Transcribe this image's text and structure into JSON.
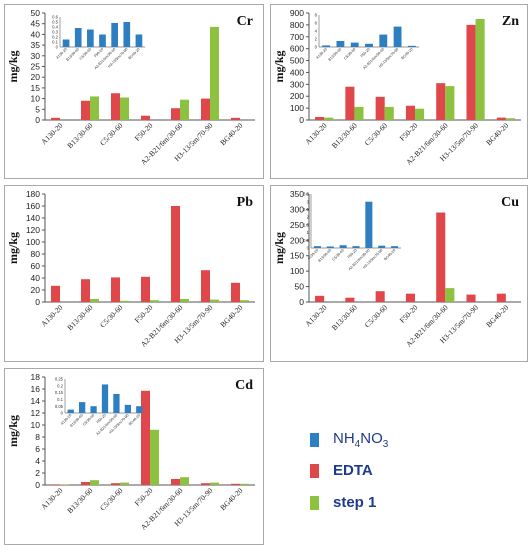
{
  "colors": {
    "NH4NO3": "#2e7fc2",
    "EDTA": "#e0474a",
    "step1": "#8cc23f"
  },
  "legend": {
    "items": [
      {
        "key": "NH4NO3",
        "prefix": "NH",
        "sub1": "4",
        "mid": "NO",
        "sub2": "3"
      },
      {
        "key": "EDTA",
        "label": "EDTA"
      },
      {
        "key": "step1",
        "label": "step 1"
      }
    ]
  },
  "chart_data": [
    {
      "type": "bar",
      "element": "Cr",
      "ylabel": "mg/kg",
      "ylim": [
        0,
        50
      ],
      "yticks": [
        0,
        5,
        10,
        15,
        20,
        25,
        30,
        35,
        40,
        45,
        50
      ],
      "categories": [
        "A130-20",
        "B13/30-60",
        "C5/30-60",
        "F50-20",
        "A2-B21/6m/30-60",
        "H3-13/5m/70-90",
        "BG40-20"
      ],
      "series": [
        {
          "key": "EDTA",
          "values": [
            1,
            9,
            12.5,
            2,
            5.5,
            10,
            1
          ]
        },
        {
          "key": "step1",
          "values": [
            0,
            11,
            10.5,
            0,
            9.5,
            43.5,
            0
          ]
        }
      ],
      "inset": {
        "ylim": [
          0,
          0.6
        ],
        "yticks": [
          0,
          0.1,
          0.2,
          0.3,
          0.4,
          0.5,
          0.6
        ],
        "labels": [
          "A130-20",
          "B13/30-60",
          "C5/30-60",
          "F50-20",
          "A2-B21/6m/30-60",
          "H3-13/5m/70-90",
          "BG40-20"
        ],
        "values": [
          0.15,
          0.38,
          0.35,
          0.25,
          0.48,
          0.5,
          0.25
        ]
      }
    },
    {
      "type": "bar",
      "element": "Zn",
      "ylabel": "mg/kg",
      "ylim": [
        0,
        900
      ],
      "yticks": [
        0,
        100,
        200,
        300,
        400,
        500,
        600,
        700,
        800,
        900
      ],
      "categories": [
        "A130-20",
        "B13/30-60",
        "C5/30-60",
        "F50-20",
        "A2-B21/6m/30-60",
        "H3-13/5m/70-90",
        "BG40-20"
      ],
      "series": [
        {
          "key": "EDTA",
          "values": [
            25,
            280,
            195,
            120,
            310,
            800,
            20
          ]
        },
        {
          "key": "step1",
          "values": [
            20,
            110,
            110,
            95,
            285,
            850,
            15
          ]
        }
      ],
      "inset": {
        "ylim": [
          0,
          8
        ],
        "yticks": [
          0,
          2,
          4,
          6,
          8
        ],
        "labels": [
          "A130-20",
          "B13/30-60",
          "C5/30-60",
          "F50-20",
          "A2-B21/6m/30-60",
          "H3-13/5m/70-90",
          "BG40-20"
        ],
        "values": [
          0.4,
          1.5,
          1.1,
          0.8,
          3.1,
          5.1,
          0.3
        ]
      }
    },
    {
      "type": "bar",
      "element": "Pb",
      "ylabel": "mg/kg",
      "ylim": [
        0,
        180
      ],
      "yticks": [
        0,
        20,
        40,
        60,
        80,
        100,
        120,
        140,
        160,
        180
      ],
      "categories": [
        "A130-20",
        "B13/30-60",
        "C5/30-60",
        "F50-20",
        "A2-B21/6m/30-60",
        "H3-13/5m/70-90",
        "BG40-20"
      ],
      "series": [
        {
          "key": "EDTA",
          "values": [
            27,
            38,
            41,
            42,
            160,
            53,
            32
          ]
        },
        {
          "key": "step1",
          "values": [
            0,
            5,
            2,
            3,
            5,
            4,
            3
          ]
        }
      ]
    },
    {
      "type": "bar",
      "element": "Cu",
      "ylabel": "mg/kg",
      "ylim": [
        0,
        350
      ],
      "yticks": [
        0,
        50,
        100,
        150,
        200,
        250,
        300,
        350
      ],
      "categories": [
        "A130-20",
        "B13/30-60",
        "C5/30-60",
        "F50-20",
        "A2-B21/6m/30-60",
        "H3-13/5m/70-90",
        "BG40-20"
      ],
      "series": [
        {
          "key": "EDTA",
          "values": [
            20,
            14,
            35,
            27,
            290,
            24,
            27
          ]
        },
        {
          "key": "step1",
          "values": [
            0,
            0,
            0,
            0,
            45,
            0,
            0
          ]
        }
      ],
      "inset": {
        "ylim": [
          0,
          3.5
        ],
        "yticks": [
          0,
          0.5,
          1,
          1.5,
          2,
          2.5,
          3,
          3.5
        ],
        "labels": [
          "A130-20",
          "B13/30-60",
          "C5/30-60",
          "F50-20",
          "A2-B21/6m/30-60",
          "H3-13/5m/70-90",
          "BG40-20"
        ],
        "values": [
          0.12,
          0.1,
          0.18,
          0.12,
          3.0,
          0.15,
          0.12
        ]
      }
    },
    {
      "type": "bar",
      "element": "Cd",
      "ylabel": "mg/kg",
      "ylim": [
        0,
        18
      ],
      "yticks": [
        0,
        2,
        4,
        6,
        8,
        10,
        12,
        14,
        16,
        18
      ],
      "categories": [
        "A130-20",
        "B13/30-60",
        "C5/30-60",
        "F50-20",
        "A2-B21/6m/30-60",
        "H3-13/5m/70-90",
        "BG40-20"
      ],
      "series": [
        {
          "key": "EDTA",
          "values": [
            0.1,
            0.5,
            0.3,
            15.7,
            1.0,
            0.3,
            0.2
          ]
        },
        {
          "key": "step1",
          "values": [
            0.1,
            0.8,
            0.4,
            9.2,
            1.3,
            0.4,
            0.2
          ]
        }
      ],
      "inset": {
        "ylim": [
          0,
          0.25
        ],
        "yticks": [
          0,
          0.05,
          0.1,
          0.15,
          0.2,
          0.25
        ],
        "labels": [
          "A130-20",
          "B13/30-60",
          "C5/30-60",
          "F50-20",
          "A2-B21/6m/30-60",
          "H3-13/5m/70-90",
          "BG40-20"
        ],
        "values": [
          0.025,
          0.08,
          0.05,
          0.21,
          0.14,
          0.06,
          0.05
        ]
      }
    }
  ]
}
